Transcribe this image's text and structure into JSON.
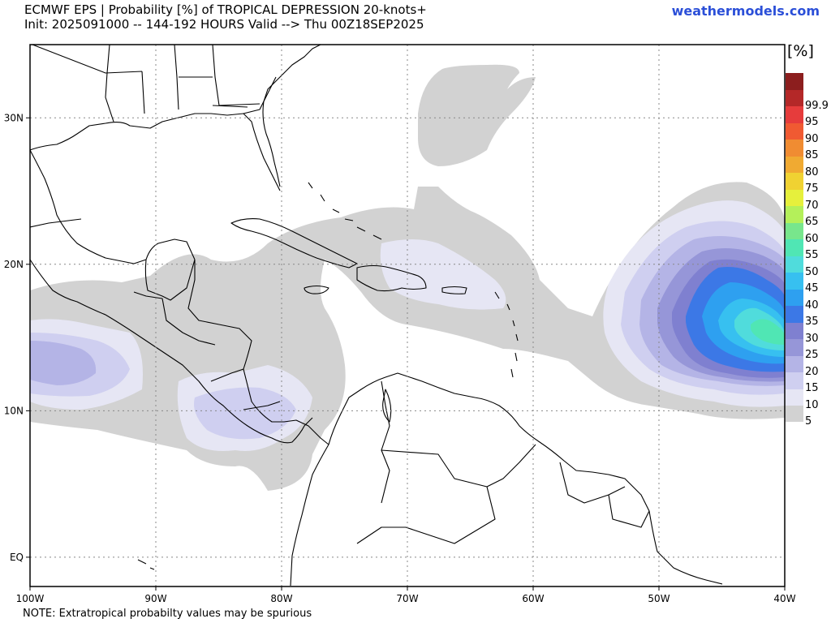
{
  "header": {
    "title_line1": "ECMWF EPS | Probability [%] of TROPICAL DEPRESSION 20-knots+",
    "title_line2": "Init: 2025091000 -- 144-192 HOURS Valid --> Thu 00Z18SEP2025",
    "site": "weathermodels.com"
  },
  "footer": {
    "note": "NOTE: Extratropical probabilty values may be spurious"
  },
  "map": {
    "lon_min": -100,
    "lon_max": -40,
    "lat_min": -2,
    "lat_max": 35,
    "x_ticks": [
      {
        "lon": -100,
        "label": "100W"
      },
      {
        "lon": -90,
        "label": "90W"
      },
      {
        "lon": -80,
        "label": "80W"
      },
      {
        "lon": -70,
        "label": "70W"
      },
      {
        "lon": -60,
        "label": "60W"
      },
      {
        "lon": -50,
        "label": "50W"
      },
      {
        "lon": -40,
        "label": "40W"
      }
    ],
    "y_ticks": [
      {
        "lat": 30,
        "label": "30N"
      },
      {
        "lat": 20,
        "label": "20N"
      },
      {
        "lat": 10,
        "label": "10N"
      },
      {
        "lat": 0,
        "label": "EQ"
      }
    ],
    "colorbar": {
      "unit": "[%]",
      "levels": [
        {
          "label": "5",
          "color": "#d2d2d2"
        },
        {
          "label": "10",
          "color": "#e6e6f4"
        },
        {
          "label": "15",
          "color": "#cfcff0"
        },
        {
          "label": "20",
          "color": "#b4b4e6"
        },
        {
          "label": "25",
          "color": "#9696d8"
        },
        {
          "label": "30",
          "color": "#7f80d0"
        },
        {
          "label": "35",
          "color": "#3c78e6"
        },
        {
          "label": "40",
          "color": "#2ea0f0"
        },
        {
          "label": "45",
          "color": "#37c0f0"
        },
        {
          "label": "50",
          "color": "#50dcdc"
        },
        {
          "label": "55",
          "color": "#50e6b4"
        },
        {
          "label": "60",
          "color": "#78e68c"
        },
        {
          "label": "65",
          "color": "#b4f05a"
        },
        {
          "label": "70",
          "color": "#e6f03c"
        },
        {
          "label": "75",
          "color": "#f0d232"
        },
        {
          "label": "80",
          "color": "#f0aa32"
        },
        {
          "label": "85",
          "color": "#f08c32"
        },
        {
          "label": "90",
          "color": "#f05a32"
        },
        {
          "label": "95",
          "color": "#e63c3c"
        },
        {
          "label": "99.9",
          "color": "#b42828"
        },
        {
          "label": "",
          "color": "#8c1e1e"
        }
      ]
    }
  }
}
